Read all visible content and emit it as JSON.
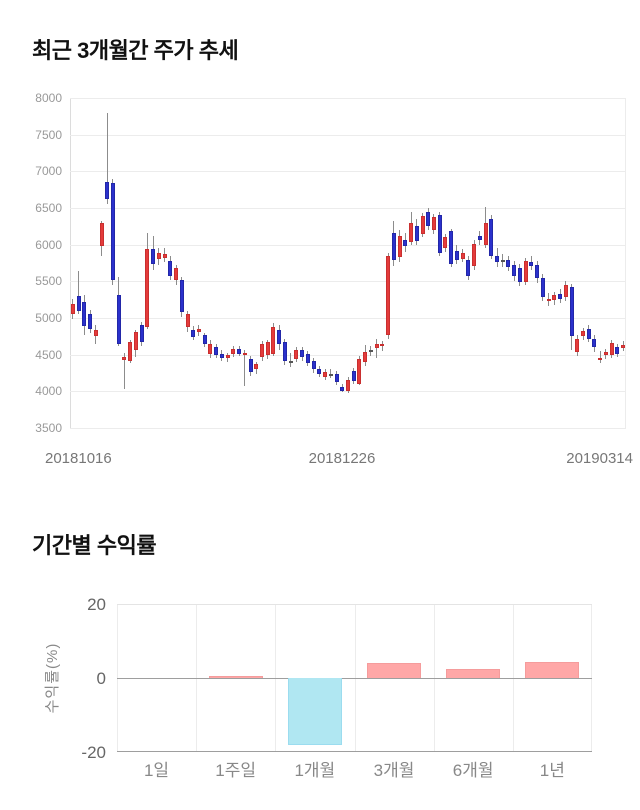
{
  "price_section_title": "최근 3개월간 주가 추세",
  "returns_section_title": "기간별 수익률",
  "colors": {
    "candle_up": "#e43b3b",
    "candle_down": "#2b31cc",
    "wick": "#8c8c8c",
    "bar_positive": "#ffa7a7",
    "bar_positive_border": "#f59c9c",
    "bar_negative": "#b0e7f2",
    "bar_negative_border": "#9bdcef",
    "grid": "#ececec",
    "axis": "#9e9e9e"
  },
  "chart_data": [
    {
      "type": "candlestick",
      "title": "최근 3개월간 주가 추세",
      "x_labels": [
        "20181016",
        "20181226",
        "20190314"
      ],
      "y_ticks": [
        8000,
        7500,
        7000,
        6500,
        6000,
        5500,
        5000,
        4500,
        4000,
        3500
      ],
      "ylim": [
        3500,
        8000
      ],
      "grid": true,
      "ohlc_note": "values as [open, high, low, close], red=up blue=down",
      "ohlc": [
        [
          5060,
          5260,
          4990,
          5190
        ],
        [
          5300,
          5640,
          5050,
          5090
        ],
        [
          5220,
          5320,
          4770,
          4890
        ],
        [
          5060,
          5110,
          4790,
          4850
        ],
        [
          4760,
          4900,
          4650,
          4840
        ],
        [
          5980,
          6320,
          5840,
          6300
        ],
        [
          6860,
          7800,
          6550,
          6620
        ],
        [
          6840,
          6900,
          5450,
          5520
        ],
        [
          5310,
          5560,
          4620,
          4640
        ],
        [
          4430,
          4520,
          4030,
          4470
        ],
        [
          4420,
          4700,
          4380,
          4670
        ],
        [
          4570,
          4830,
          4470,
          4810
        ],
        [
          4900,
          4950,
          4620,
          4670
        ],
        [
          4880,
          6160,
          4850,
          5940
        ],
        [
          5940,
          6120,
          5650,
          5730
        ],
        [
          5800,
          5960,
          5720,
          5890
        ],
        [
          5820,
          5950,
          5760,
          5870
        ],
        [
          5780,
          5850,
          5520,
          5570
        ],
        [
          5520,
          5720,
          5450,
          5680
        ],
        [
          5520,
          5560,
          5020,
          5080
        ],
        [
          4880,
          5100,
          4810,
          5060
        ],
        [
          4840,
          4890,
          4700,
          4740
        ],
        [
          4810,
          4900,
          4760,
          4850
        ],
        [
          4770,
          4800,
          4600,
          4650
        ],
        [
          4510,
          4700,
          4450,
          4650
        ],
        [
          4600,
          4640,
          4450,
          4490
        ],
        [
          4510,
          4560,
          4420,
          4450
        ],
        [
          4450,
          4520,
          4400,
          4490
        ],
        [
          4510,
          4620,
          4470,
          4580
        ],
        [
          4580,
          4620,
          4480,
          4510
        ],
        [
          4500,
          4560,
          4070,
          4520
        ],
        [
          4440,
          4480,
          4210,
          4260
        ],
        [
          4300,
          4400,
          4230,
          4370
        ],
        [
          4470,
          4690,
          4420,
          4650
        ],
        [
          4490,
          4700,
          4440,
          4670
        ],
        [
          4510,
          4930,
          4480,
          4880
        ],
        [
          4840,
          4900,
          4560,
          4640
        ],
        [
          4670,
          4720,
          4360,
          4420
        ],
        [
          4420,
          4520,
          4330,
          4420
        ],
        [
          4440,
          4600,
          4400,
          4560
        ],
        [
          4560,
          4610,
          4420,
          4470
        ],
        [
          4510,
          4550,
          4340,
          4380
        ],
        [
          4420,
          4460,
          4250,
          4300
        ],
        [
          4300,
          4350,
          4190,
          4240
        ],
        [
          4200,
          4310,
          4160,
          4270
        ],
        [
          4240,
          4300,
          4180,
          4240
        ],
        [
          4240,
          4280,
          4080,
          4130
        ],
        [
          4060,
          4100,
          3990,
          4010
        ],
        [
          4000,
          4200,
          3980,
          4160
        ],
        [
          4280,
          4320,
          4100,
          4140
        ],
        [
          4100,
          4480,
          4080,
          4440
        ],
        [
          4400,
          4630,
          4350,
          4530
        ],
        [
          4560,
          4620,
          4480,
          4560
        ],
        [
          4590,
          4720,
          4460,
          4640
        ],
        [
          4620,
          4680,
          4550,
          4650
        ],
        [
          4770,
          5890,
          4720,
          5840
        ],
        [
          6160,
          6320,
          5710,
          5790
        ],
        [
          5830,
          6200,
          5770,
          6120
        ],
        [
          6060,
          6160,
          5900,
          5980
        ],
        [
          6040,
          6450,
          6000,
          6290
        ],
        [
          6250,
          6350,
          5990,
          6050
        ],
        [
          6150,
          6430,
          6100,
          6390
        ],
        [
          6450,
          6500,
          6200,
          6250
        ],
        [
          6200,
          6420,
          6150,
          6380
        ],
        [
          6410,
          6450,
          5850,
          5890
        ],
        [
          5950,
          6150,
          5900,
          6100
        ],
        [
          6180,
          6220,
          5700,
          5740
        ],
        [
          5910,
          5990,
          5740,
          5790
        ],
        [
          5800,
          5940,
          5760,
          5880
        ],
        [
          5790,
          5840,
          5520,
          5570
        ],
        [
          5710,
          6060,
          5660,
          6010
        ],
        [
          6120,
          6180,
          6000,
          6060
        ],
        [
          6000,
          6520,
          5960,
          6290
        ],
        [
          6350,
          6400,
          5800,
          5850
        ],
        [
          5850,
          5960,
          5700,
          5760
        ],
        [
          5790,
          5870,
          5700,
          5790
        ],
        [
          5790,
          5850,
          5640,
          5700
        ],
        [
          5720,
          5780,
          5500,
          5570
        ],
        [
          5680,
          5740,
          5430,
          5490
        ],
        [
          5490,
          5820,
          5450,
          5780
        ],
        [
          5760,
          5840,
          5650,
          5710
        ],
        [
          5720,
          5780,
          5480,
          5540
        ],
        [
          5540,
          5600,
          5230,
          5280
        ],
        [
          5250,
          5340,
          5160,
          5260
        ],
        [
          5240,
          5360,
          5180,
          5310
        ],
        [
          5330,
          5400,
          5210,
          5260
        ],
        [
          5280,
          5500,
          5230,
          5450
        ],
        [
          5420,
          5470,
          4560,
          4760
        ],
        [
          4530,
          4770,
          4480,
          4720
        ],
        [
          4750,
          4870,
          4700,
          4820
        ],
        [
          4850,
          4900,
          4670,
          4720
        ],
        [
          4720,
          4770,
          4540,
          4600
        ],
        [
          4450,
          4550,
          4380,
          4460
        ],
        [
          4490,
          4580,
          4440,
          4530
        ],
        [
          4490,
          4700,
          4450,
          4660
        ],
        [
          4600,
          4650,
          4470,
          4515
        ],
        [
          4590,
          4680,
          4550,
          4630
        ]
      ]
    },
    {
      "type": "bar",
      "title": "기간별 수익률",
      "ylabel": "수익률(%)",
      "categories": [
        "1일",
        "1주일",
        "1개월",
        "3개월",
        "6개월",
        "1년"
      ],
      "values": [
        0,
        0.6,
        -18,
        4.1,
        2.4,
        4.2
      ],
      "y_ticks": [
        20,
        0,
        -20
      ],
      "ylim": [
        -20,
        20
      ],
      "grid": true,
      "legend": null
    }
  ]
}
